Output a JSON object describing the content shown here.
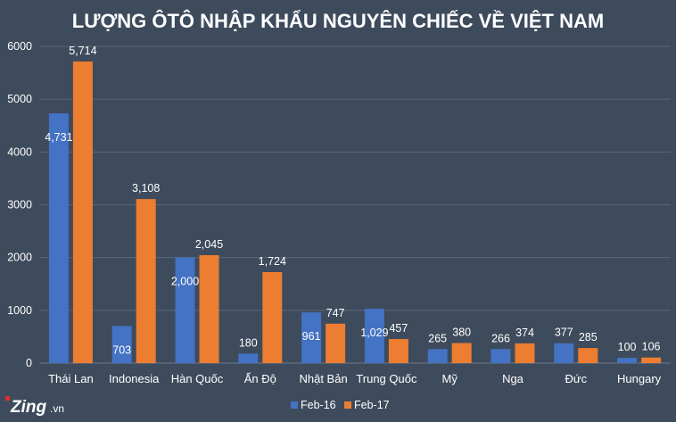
{
  "chart_data": {
    "type": "bar",
    "title": "LƯỢNG ÔTÔ NHẬP KHẨU NGUYÊN CHIẾC VỀ VIỆT NAM",
    "categories": [
      "Thái Lan",
      "Indonesia",
      "Hàn Quốc",
      "Ấn Độ",
      "Nhật Bản",
      "Trung Quốc",
      "Mỹ",
      "Nga",
      "Đức",
      "Hungary"
    ],
    "series": [
      {
        "name": "Feb-16",
        "color": "#4472c4",
        "values": [
          4731,
          703,
          2000,
          180,
          961,
          1029,
          265,
          266,
          377,
          100
        ],
        "labels": [
          "4,731",
          "703",
          "2,000",
          "180",
          "961",
          "1,029",
          "265",
          "266",
          "377",
          "100"
        ]
      },
      {
        "name": "Feb-17",
        "color": "#ed7d31",
        "values": [
          5714,
          3108,
          2045,
          1724,
          747,
          457,
          380,
          374,
          285,
          106
        ],
        "labels": [
          "5,714",
          "3,108",
          "2,045",
          "1,724",
          "747",
          "457",
          "380",
          "374",
          "285",
          "106"
        ]
      }
    ],
    "yticks": [
      "0",
      "1000",
      "2000",
      "3000",
      "4000",
      "5000",
      "6000"
    ],
    "ylim": [
      0,
      6000
    ],
    "grid": true,
    "legend_position": "bottom"
  },
  "branding": {
    "logo_main": "Zing",
    "logo_sub": ".vn"
  }
}
